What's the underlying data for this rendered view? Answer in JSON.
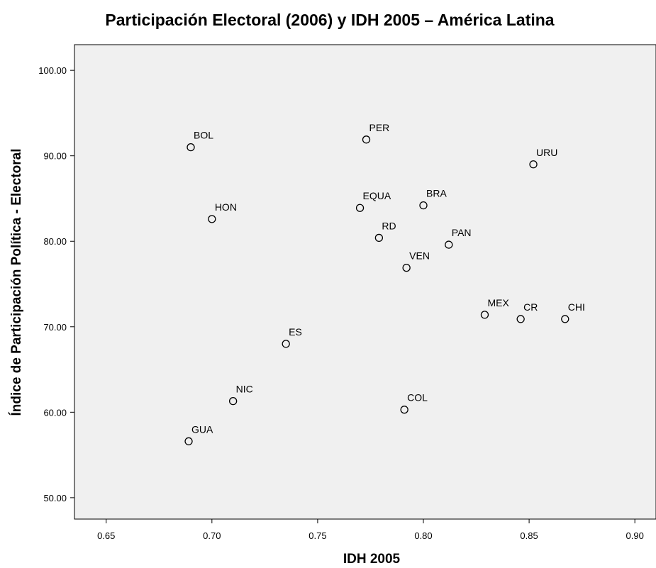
{
  "chart_data": {
    "type": "scatter",
    "title": "Participación Electoral (2006) y IDH 2005 – América Latina",
    "xlabel": "IDH 2005",
    "ylabel": "Índice de Participación Política - Electoral",
    "xlim": [
      0.635,
      0.91
    ],
    "ylim": [
      47.5,
      103
    ],
    "xticks": [
      {
        "value": 0.65,
        "label": "0.65"
      },
      {
        "value": 0.7,
        "label": "0.70"
      },
      {
        "value": 0.75,
        "label": "0.75"
      },
      {
        "value": 0.8,
        "label": "0.80"
      },
      {
        "value": 0.85,
        "label": "0.85"
      },
      {
        "value": 0.9,
        "label": "0.90"
      }
    ],
    "yticks": [
      {
        "value": 50,
        "label": "50.00"
      },
      {
        "value": 60,
        "label": "60.00"
      },
      {
        "value": 70,
        "label": "70.00"
      },
      {
        "value": 80,
        "label": "80.00"
      },
      {
        "value": 90,
        "label": "90.00"
      },
      {
        "value": 100,
        "label": "100.00"
      }
    ],
    "grid": false,
    "points": [
      {
        "label": "BOL",
        "x": 0.69,
        "y": 91.0
      },
      {
        "label": "PER",
        "x": 0.773,
        "y": 91.9
      },
      {
        "label": "URU",
        "x": 0.852,
        "y": 89.0
      },
      {
        "label": "HON",
        "x": 0.7,
        "y": 82.6
      },
      {
        "label": "EQUA",
        "x": 0.77,
        "y": 83.9
      },
      {
        "label": "BRA",
        "x": 0.8,
        "y": 84.2
      },
      {
        "label": "RD",
        "x": 0.779,
        "y": 80.4
      },
      {
        "label": "PAN",
        "x": 0.812,
        "y": 79.6
      },
      {
        "label": "VEN",
        "x": 0.792,
        "y": 76.9
      },
      {
        "label": "MEX",
        "x": 0.829,
        "y": 71.4
      },
      {
        "label": "CR",
        "x": 0.846,
        "y": 70.9
      },
      {
        "label": "CHI",
        "x": 0.867,
        "y": 70.9
      },
      {
        "label": "ES",
        "x": 0.735,
        "y": 68.0
      },
      {
        "label": "NIC",
        "x": 0.71,
        "y": 61.3
      },
      {
        "label": "COL",
        "x": 0.791,
        "y": 60.3
      },
      {
        "label": "GUA",
        "x": 0.689,
        "y": 56.6
      }
    ]
  }
}
